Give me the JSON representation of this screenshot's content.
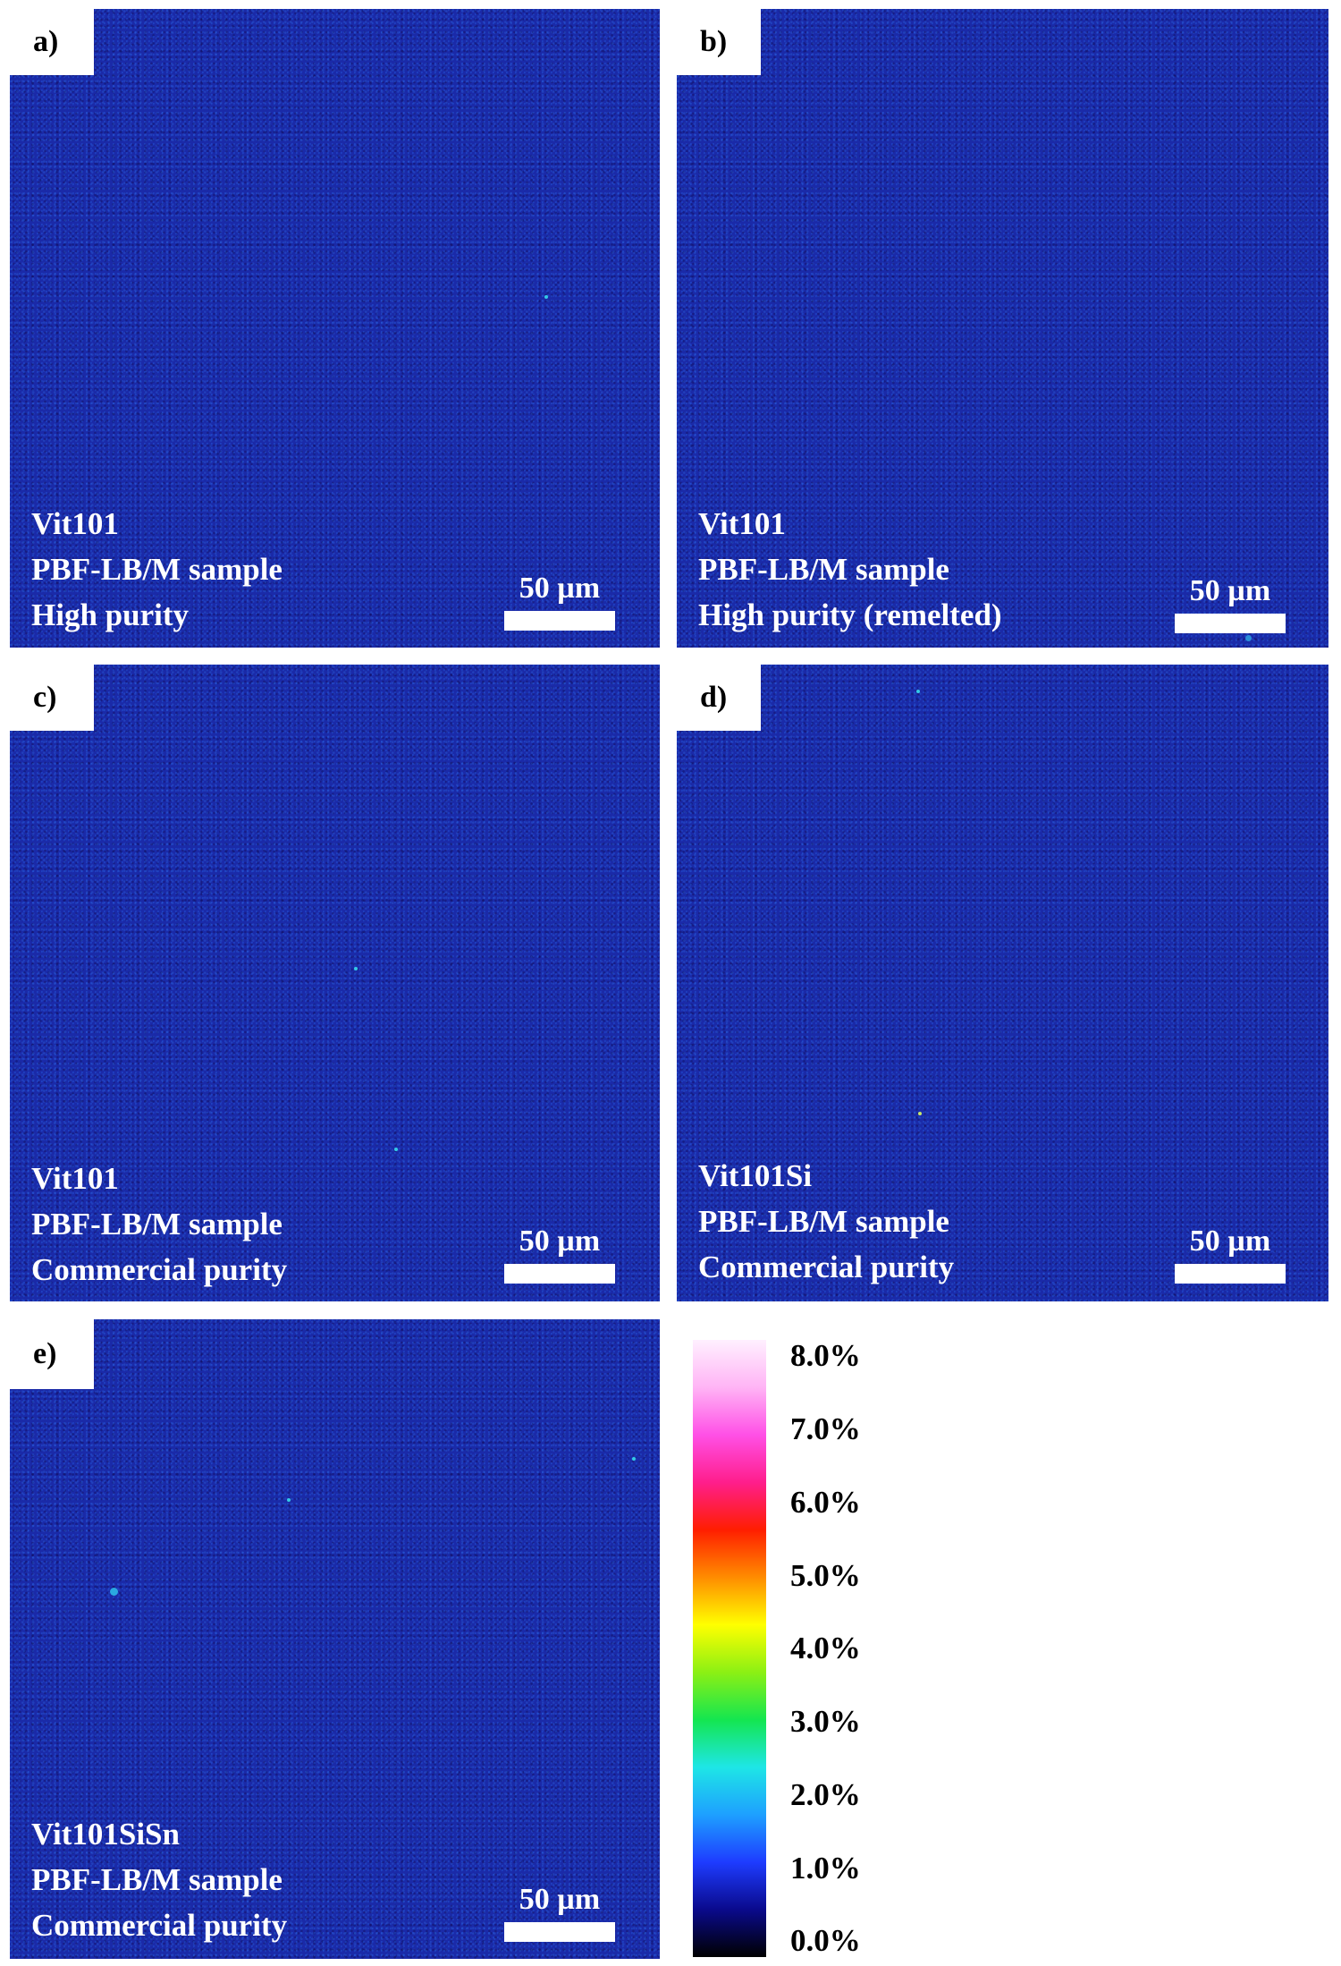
{
  "panels": [
    {
      "label": "a)",
      "lines": [
        "Vit101",
        "PBF-LB/M sample",
        "High purity"
      ],
      "scale_bar": "50 µm"
    },
    {
      "label": "b)",
      "lines": [
        "Vit101",
        "PBF-LB/M sample",
        "High purity (remelted)"
      ],
      "scale_bar": "50 µm"
    },
    {
      "label": "c)",
      "lines": [
        "Vit101",
        "PBF-LB/M sample",
        "Commercial purity"
      ],
      "scale_bar": "50 µm"
    },
    {
      "label": "d)",
      "lines": [
        "Vit101Si",
        "PBF-LB/M sample",
        "Commercial purity"
      ],
      "scale_bar": "50 µm"
    },
    {
      "label": "e)",
      "lines": [
        "Vit101SiSn",
        "PBF-LB/M sample",
        "Commercial purity"
      ],
      "scale_bar": "50 µm"
    }
  ],
  "colorbar": {
    "ticks": [
      "8.0%",
      "7.0%",
      "6.0%",
      "5.0%",
      "4.0%",
      "3.0%",
      "2.0%",
      "1.0%",
      "0.0%"
    ],
    "colors": [
      "#000000",
      "#0a0a8c",
      "#1e3cff",
      "#1ea0ff",
      "#1ee6e6",
      "#14e650",
      "#8cf014",
      "#ffff00",
      "#ff8c00",
      "#ff1e00",
      "#ff1e8c",
      "#ff50e6",
      "#ffb4f5",
      "#fff0ff"
    ]
  },
  "colors": {
    "map_background": "#1a2aa8",
    "speck": "#34c9e6"
  }
}
